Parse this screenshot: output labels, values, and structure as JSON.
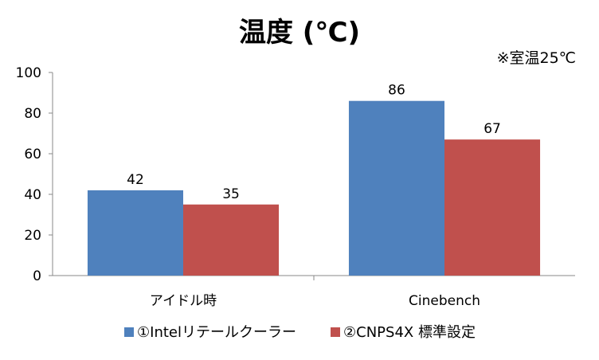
{
  "chart_data": {
    "type": "bar",
    "title": "温度 (℃)",
    "annotation": "※室温25℃",
    "categories": [
      "アイドル時",
      "Cinebench"
    ],
    "series": [
      {
        "name": "①Intelリテールクーラー",
        "values": [
          42,
          86
        ],
        "color": "#4f81bd"
      },
      {
        "name": "②CNPS4X 標準設定",
        "values": [
          35,
          67
        ],
        "color": "#c0504d"
      }
    ],
    "ylim": [
      0,
      100
    ],
    "yticks": [
      0,
      20,
      40,
      60,
      80,
      100
    ],
    "grid": false,
    "legend_position": "bottom"
  }
}
